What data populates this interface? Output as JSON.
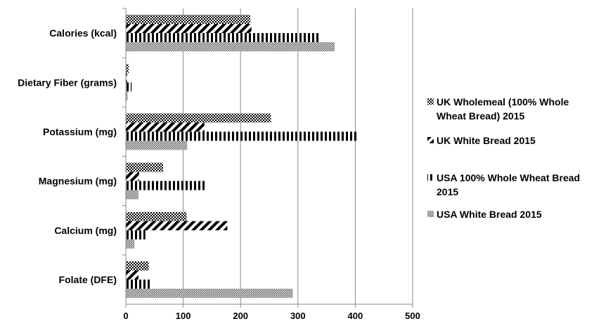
{
  "chart_data": {
    "type": "bar",
    "orientation": "horizontal",
    "categories": [
      "Calories (kcal)",
      "Dietary Fiber (grams)",
      "Potassium (mg)",
      "Magnesium (mg)",
      "Calcium (mg)",
      "Folate (DFE)"
    ],
    "series": [
      {
        "name": "UK Wholemeal (100% Whole Wheat Bread) 2015",
        "legend_lines": [
          "UK Wholemeal (100% Whole",
          "Wheat Bread) 2015"
        ],
        "values": [
          217,
          5,
          253,
          65,
          106,
          40
        ]
      },
      {
        "name": "UK White Bread 2015",
        "legend_lines": [
          "UK White Bread 2015"
        ],
        "values": [
          219,
          2,
          137,
          23,
          177,
          22
        ]
      },
      {
        "name": "USA 100% Whole Wheat Bread 2015",
        "legend_lines": [
          "USA 100% Whole Wheat Bread",
          "2015"
        ],
        "values": [
          336,
          10,
          405,
          138,
          34,
          42
        ]
      },
      {
        "name": "USA White Bread 2015",
        "legend_lines": [
          "USA White Bread 2015"
        ],
        "values": [
          364,
          3,
          107,
          22,
          15,
          291
        ]
      }
    ],
    "xlim": [
      0,
      500
    ],
    "ticks": [
      0,
      100,
      200,
      300,
      400,
      500
    ],
    "grid": true,
    "legend": "right",
    "patterns": [
      "dots",
      "diagonal-stripes",
      "vertical-stripes",
      "fine-stipple"
    ]
  }
}
